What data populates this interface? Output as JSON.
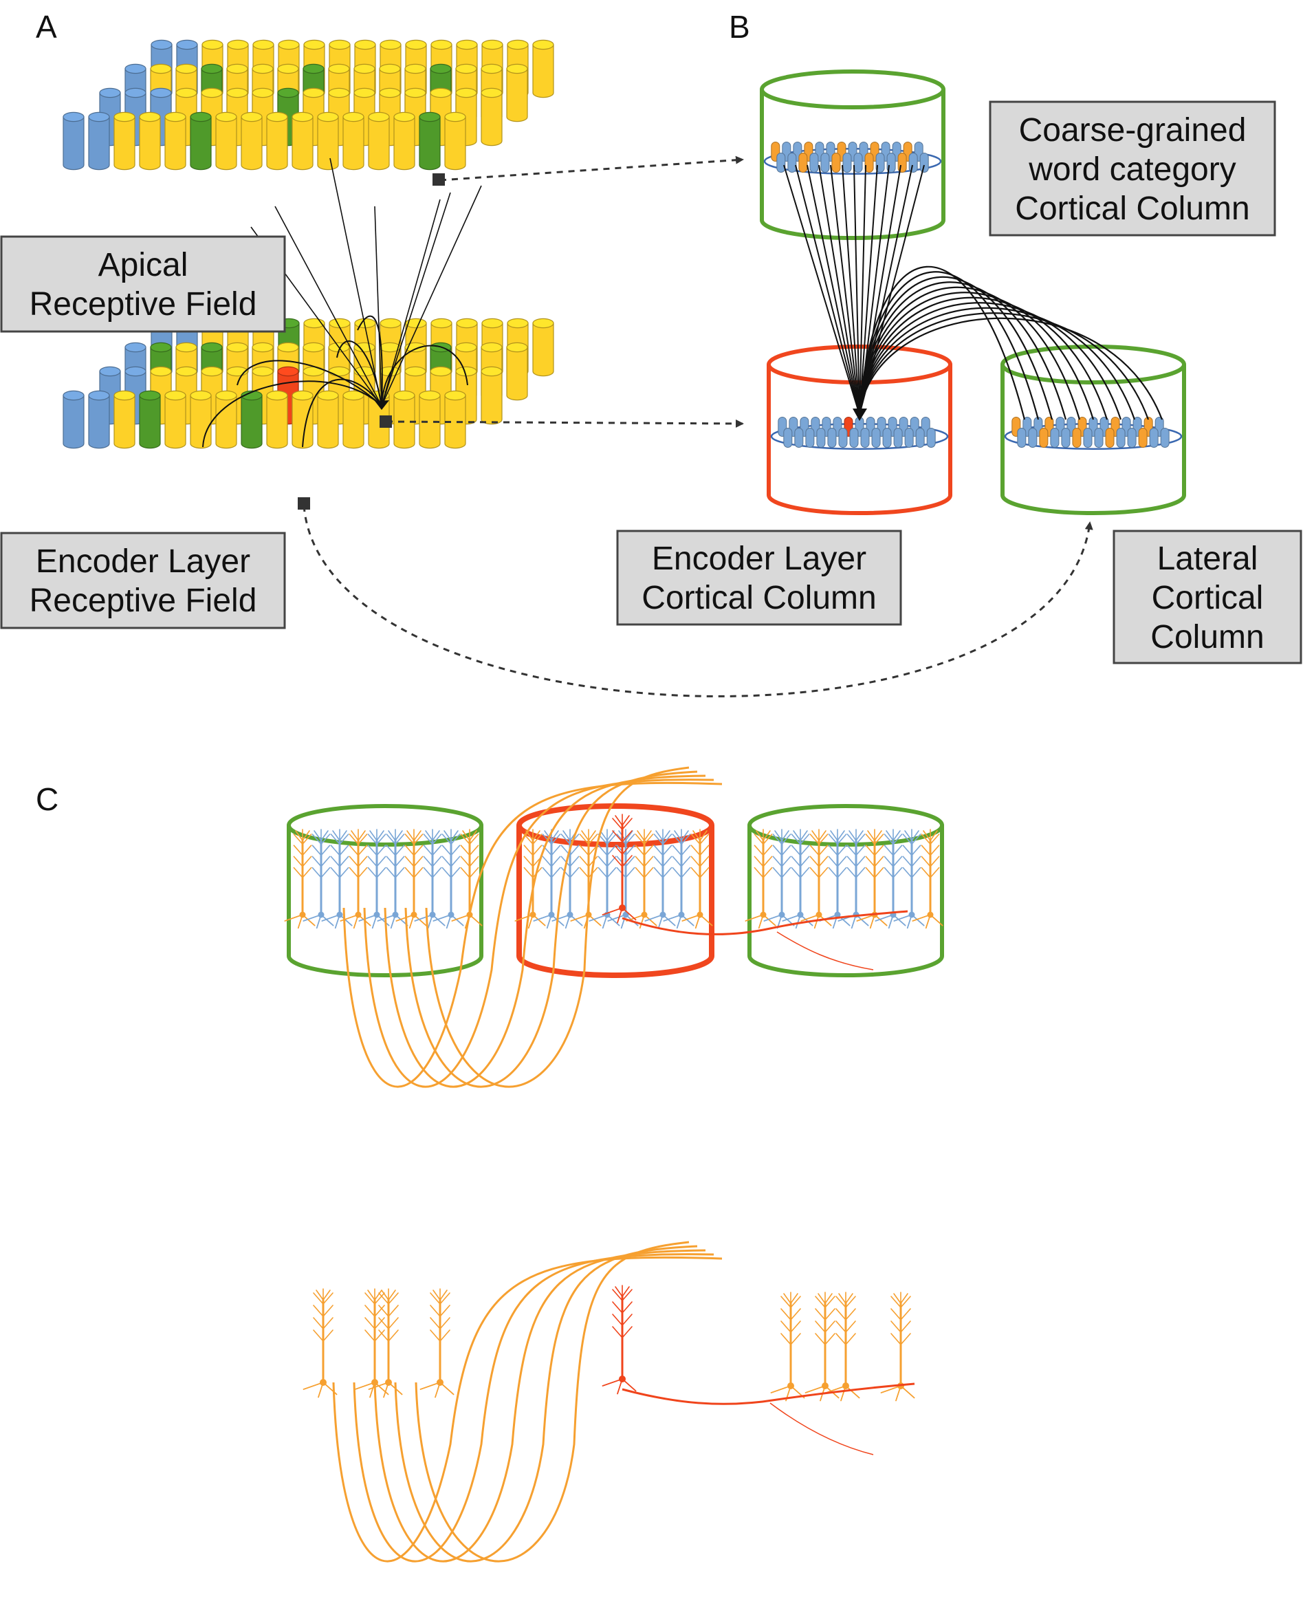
{
  "panels": {
    "a": "A",
    "b": "B",
    "c": "C"
  },
  "labels": {
    "apical": [
      "Apical",
      "Receptive Field"
    ],
    "encoder_rf": [
      "Encoder Layer",
      "Receptive Field"
    ],
    "coarse": [
      "Coarse-grained",
      "word category",
      "Cortical Column"
    ],
    "encoder_col": [
      "Encoder Layer",
      "Cortical Column"
    ],
    "lateral": [
      "Lateral",
      "Cortical",
      "Column"
    ]
  },
  "colors": {
    "blue": "#6d9bd0",
    "yellow": "#fdd128",
    "green": "#4f9a2a",
    "red": "#f0441b",
    "orange": "#f6a030",
    "column_green": "#5aa330",
    "column_red": "#f0461e",
    "neuron_blue": "#7aa6d6",
    "disc_blue": "#3a68b0",
    "box_fill": "#d9d9d9"
  },
  "icons": [
    "cylinder-icon",
    "pyramidal-neuron-icon",
    "cortical-column-icon",
    "dashed-arrow-icon"
  ]
}
